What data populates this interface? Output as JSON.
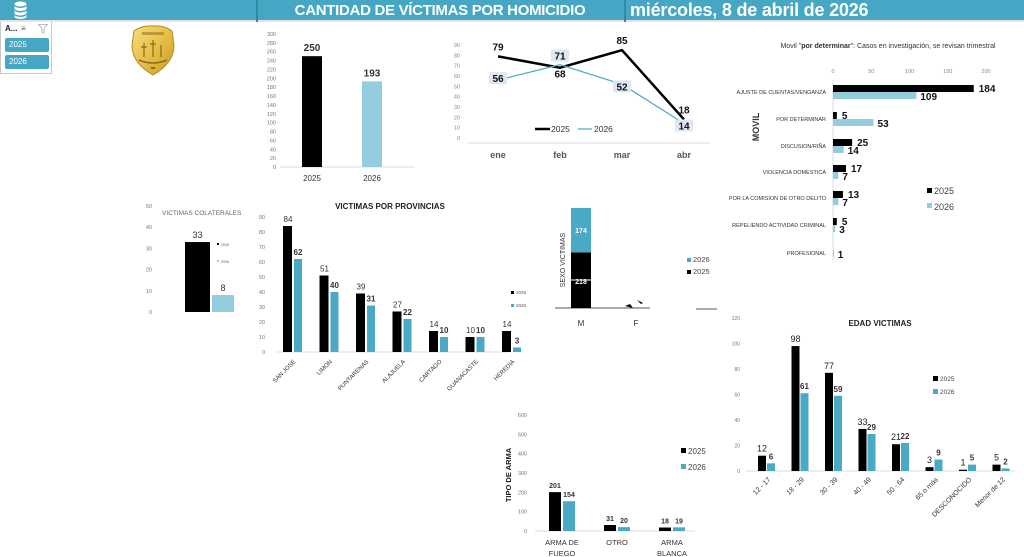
{
  "header": {
    "title": "CANTIDAD DE VÍCTIMAS POR HOMICIDIO",
    "date": "miércoles, 8 de abril de 2026",
    "icon": "database-icon",
    "bg_color": "#45a7c3"
  },
  "slicer": {
    "title": "A...",
    "multiselect_icon": "multi-select-icon",
    "clear_filter_icon": "clear-filter-icon",
    "items": [
      "2025",
      "2026"
    ]
  },
  "logo": {
    "icon": "police-badge-icon"
  },
  "colors": {
    "y2025": "#000000",
    "y2026_light": "#93cddf",
    "y2026": "#4aaac5"
  },
  "chart_data": [
    {
      "id": "total",
      "type": "bar",
      "title": "",
      "categories": [
        "2025",
        "2026"
      ],
      "values": [
        250,
        193
      ],
      "ylim": [
        0,
        300
      ],
      "yticks": [
        0,
        20,
        40,
        60,
        80,
        100,
        120,
        140,
        160,
        180,
        200,
        220,
        240,
        260,
        280,
        300
      ]
    },
    {
      "id": "monthly",
      "type": "line",
      "title": "",
      "categories": [
        "ene",
        "feb",
        "mar",
        "abr"
      ],
      "series": [
        {
          "name": "2025",
          "values": [
            79,
            68,
            85,
            18
          ]
        },
        {
          "name": "2026",
          "values": [
            56,
            71,
            52,
            14
          ]
        }
      ],
      "ylim": [
        0,
        90
      ],
      "yticks": [
        0,
        10,
        20,
        30,
        40,
        50,
        60,
        70,
        80,
        90
      ],
      "legend": "bottom"
    },
    {
      "id": "movil",
      "type": "bar",
      "orientation": "horizontal",
      "title": "Movil \"por determinar\": Casos en investigación, se revisan trimestral",
      "title_parts": [
        "Movil \"",
        "por determinar",
        "\": Casos en investigación, se revisan trimestral"
      ],
      "ylabel": "MOVIL",
      "categories": [
        "AJUSTE DE CUENTAS/VENGANZA",
        "POR DETERMINAR",
        "DISCUSION/RIÑA",
        "VIOLENCIA DOMESTICA",
        "POR LA COMISION DE OTRO DELITO",
        "REPELIENDO ACTIVIDAD CRIMINAL",
        "PROFESIONAL"
      ],
      "series": [
        {
          "name": "2025",
          "values": [
            184,
            5,
            25,
            17,
            13,
            5,
            null
          ]
        },
        {
          "name": "2026",
          "values": [
            109,
            53,
            14,
            7,
            7,
            3,
            1
          ]
        }
      ],
      "xlim": [
        0,
        200
      ],
      "xticks": [
        0,
        50,
        100,
        150,
        200
      ],
      "legend": "right"
    },
    {
      "id": "colaterales",
      "type": "bar",
      "title": "VICTIMAS COLATERALES",
      "categories": [
        "2025",
        "2026"
      ],
      "values": [
        33,
        8
      ],
      "ylim": [
        0,
        50
      ],
      "yticks": [
        0,
        10,
        20,
        30,
        40,
        50
      ],
      "legend": "right"
    },
    {
      "id": "provincias",
      "type": "bar",
      "title": "VICTIMAS POR PROVINCIAS",
      "categories": [
        "SAN JOSE",
        "LIMON",
        "PUNTARENAS",
        "ALAJUELA",
        "CARTAGO",
        "GUANACASTE",
        "HEREDIA"
      ],
      "series": [
        {
          "name": "2025",
          "values": [
            84,
            51,
            39,
            27,
            14,
            10,
            14
          ]
        },
        {
          "name": "2026",
          "values": [
            62,
            40,
            31,
            22,
            10,
            10,
            3
          ]
        }
      ],
      "ylim": [
        0,
        90
      ],
      "yticks": [
        0,
        10,
        20,
        30,
        40,
        50,
        60,
        70,
        80,
        90
      ],
      "legend": "right"
    },
    {
      "id": "sexo",
      "type": "bar",
      "stacked": true,
      "ylabel": "SEXO VICTIMAS",
      "categories": [
        "M",
        "F"
      ],
      "series": [
        {
          "name": "2025",
          "values": [
            218,
            null
          ]
        },
        {
          "name": "2026",
          "values": [
            174,
            null
          ]
        }
      ],
      "legend": "right"
    },
    {
      "id": "arma",
      "type": "bar",
      "ylabel": "TIPO DE ARMA",
      "categories": [
        "ARMA DE FUEGO",
        "OTRO",
        "ARMA BLANCA"
      ],
      "series": [
        {
          "name": "2025",
          "values": [
            201,
            31,
            18
          ]
        },
        {
          "name": "2026",
          "values": [
            154,
            20,
            19
          ]
        }
      ],
      "ylim": [
        0,
        600
      ],
      "yticks": [
        0,
        100,
        200,
        300,
        400,
        500,
        600
      ],
      "legend": "right"
    },
    {
      "id": "edad",
      "type": "bar",
      "title": "EDAD VICTIMAS",
      "categories": [
        "12 - 17",
        "18 - 29",
        "30 - 39",
        "40 - 49",
        "50 - 64",
        "65 o más",
        "DESCONOCIDO",
        "Menor de 12"
      ],
      "series": [
        {
          "name": "2025",
          "values": [
            12,
            98,
            77,
            33,
            21,
            3,
            1,
            5
          ]
        },
        {
          "name": "2026",
          "values": [
            6,
            61,
            59,
            29,
            22,
            9,
            5,
            2
          ]
        }
      ],
      "ylim": [
        0,
        120
      ],
      "yticks": [
        0,
        20,
        40,
        60,
        80,
        100,
        120
      ],
      "legend": "right"
    }
  ]
}
